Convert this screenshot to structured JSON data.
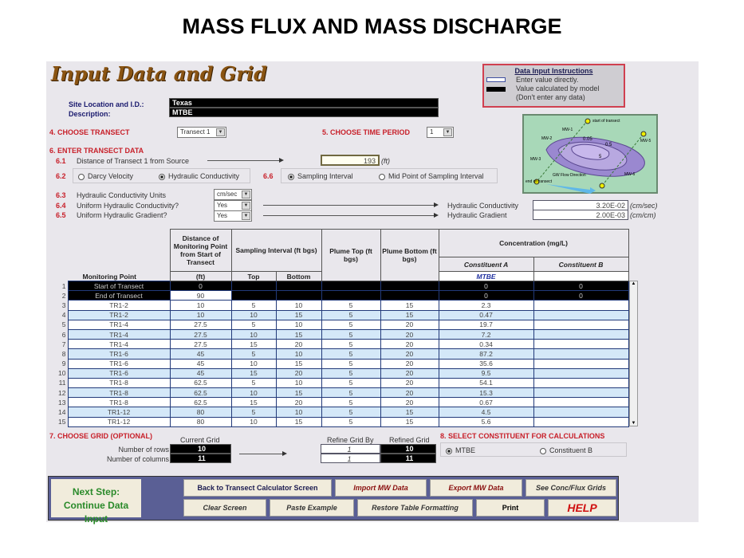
{
  "title": "MASS FLUX AND MASS DISCHARGE",
  "heading": "Input Data and Grid",
  "instructions": {
    "title": "Data Input Instructions",
    "enter": "Enter value directly.",
    "calc": "Value calculated by model",
    "dont": "(Don't enter any data)"
  },
  "site": {
    "label": "Site Location and I.D.:",
    "value": "Texas",
    "desc_label": "Description:",
    "desc_value": "MTBE"
  },
  "s4": {
    "label": "4. CHOOSE TRANSECT",
    "value": "Transect 1"
  },
  "s5": {
    "label": "5. CHOOSE TIME PERIOD",
    "value": "1"
  },
  "s6": {
    "label": "6. ENTER TRANSECT DATA",
    "n61": "6.1",
    "l61": "Distance of Transect 1 from Source",
    "v61": "193",
    "u61": "(ft)",
    "n62": "6.2",
    "darcy": "Darcy Velocity",
    "hydcond": "Hydraulic Conductivity",
    "n66": "6.6",
    "sampint": "Sampling Interval",
    "midpoint": "Mid Point of Sampling Interval",
    "n63": "6.3",
    "l63": "Hydraulic Conductivity Units",
    "v63": "cm/sec",
    "n64": "6.4",
    "l64": "Uniform Hydraulic Conductivity?",
    "v64": "Yes",
    "n65": "6.5",
    "l65": "Uniform Hydraulic Gradient?",
    "v65": "Yes",
    "hc_label": "Hydraulic Conductivity",
    "hc_value": "3.20E-02",
    "hc_unit": "(cm/sec)",
    "hg_label": "Hydraulic Gradient",
    "hg_value": "2.00E-03",
    "hg_unit": "(cm/cm)"
  },
  "diagram": {
    "start": "start of transect",
    "end": "end of transect",
    "flow": "GW Flow Direction",
    "wells": [
      "MW-1",
      "MW-2",
      "MW-3",
      "MW-5",
      "MW-6"
    ],
    "contours": [
      "0.05",
      "0.5",
      "5"
    ]
  },
  "table": {
    "headers": {
      "mp": "Monitoring Point",
      "dist": "Distance of Monitoring Point from Start of Transect",
      "dist_unit": "(ft)",
      "samp": "Sampling Interval (ft bgs)",
      "top": "Top",
      "bottom": "Bottom",
      "ptop": "Plume Top (ft bgs)",
      "pbot": "Plume Bottom (ft bgs)",
      "conc": "Concentration (mg/L)",
      "ca": "Constituent A",
      "cb": "Constituent B",
      "ca_name": "MTBE"
    },
    "rows": [
      [
        "1",
        "Start of Transect",
        "0",
        "",
        "",
        "",
        "",
        "0",
        "0"
      ],
      [
        "2",
        "End of Transect",
        "90",
        "",
        "",
        "",
        "",
        "0",
        "0"
      ],
      [
        "3",
        "TR1-2",
        "10",
        "5",
        "10",
        "5",
        "15",
        "2.3",
        ""
      ],
      [
        "4",
        "TR1-2",
        "10",
        "10",
        "15",
        "5",
        "15",
        "0.47",
        ""
      ],
      [
        "5",
        "TR1-4",
        "27.5",
        "5",
        "10",
        "5",
        "20",
        "19.7",
        ""
      ],
      [
        "6",
        "TR1-4",
        "27.5",
        "10",
        "15",
        "5",
        "20",
        "7.2",
        ""
      ],
      [
        "7",
        "TR1-4",
        "27.5",
        "15",
        "20",
        "5",
        "20",
        "0.34",
        ""
      ],
      [
        "8",
        "TR1-6",
        "45",
        "5",
        "10",
        "5",
        "20",
        "87.2",
        ""
      ],
      [
        "9",
        "TR1-6",
        "45",
        "10",
        "15",
        "5",
        "20",
        "35.6",
        ""
      ],
      [
        "10",
        "TR1-6",
        "45",
        "15",
        "20",
        "5",
        "20",
        "9.5",
        ""
      ],
      [
        "11",
        "TR1-8",
        "62.5",
        "5",
        "10",
        "5",
        "20",
        "54.1",
        ""
      ],
      [
        "12",
        "TR1-8",
        "62.5",
        "10",
        "15",
        "5",
        "20",
        "15.3",
        ""
      ],
      [
        "13",
        "TR1-8",
        "62.5",
        "15",
        "20",
        "5",
        "20",
        "0.67",
        ""
      ],
      [
        "14",
        "TR1-12",
        "80",
        "5",
        "10",
        "5",
        "15",
        "4.5",
        ""
      ],
      [
        "15",
        "TR1-12",
        "80",
        "10",
        "15",
        "5",
        "15",
        "5.6",
        ""
      ]
    ]
  },
  "s7": {
    "label": "7. CHOOSE GRID (OPTIONAL)",
    "current": "Current Grid",
    "rows_label": "Number of rows",
    "cols_label": "Number of columns",
    "rows": "10",
    "cols": "11",
    "refine_by": "Refine Grid By",
    "refined": "Refined Grid",
    "refine_rows": "1",
    "refine_cols": "1",
    "refined_rows": "10",
    "refined_cols": "11"
  },
  "s8": {
    "label": "8. SELECT CONSTITUENT FOR CALCULATIONS",
    "opt_a": "MTBE",
    "opt_b": "Constituent B"
  },
  "buttons": {
    "next1": "Next Step:",
    "next2": "Continue Data Input",
    "back": "Back to Transect Calculator Screen",
    "import": "Import MW Data",
    "export": "Export MW Data",
    "grids": "See Conc/Flux Grids",
    "clear": "Clear Screen",
    "paste": "Paste Example",
    "restore": "Restore Table Formatting",
    "print": "Print",
    "help": "HELP"
  },
  "colors": {
    "row_alt": "#d4e8f8",
    "heading": "#8a5412",
    "section": "#c8202a",
    "next": "#2a8a2a",
    "bar": "#5a5f95"
  }
}
